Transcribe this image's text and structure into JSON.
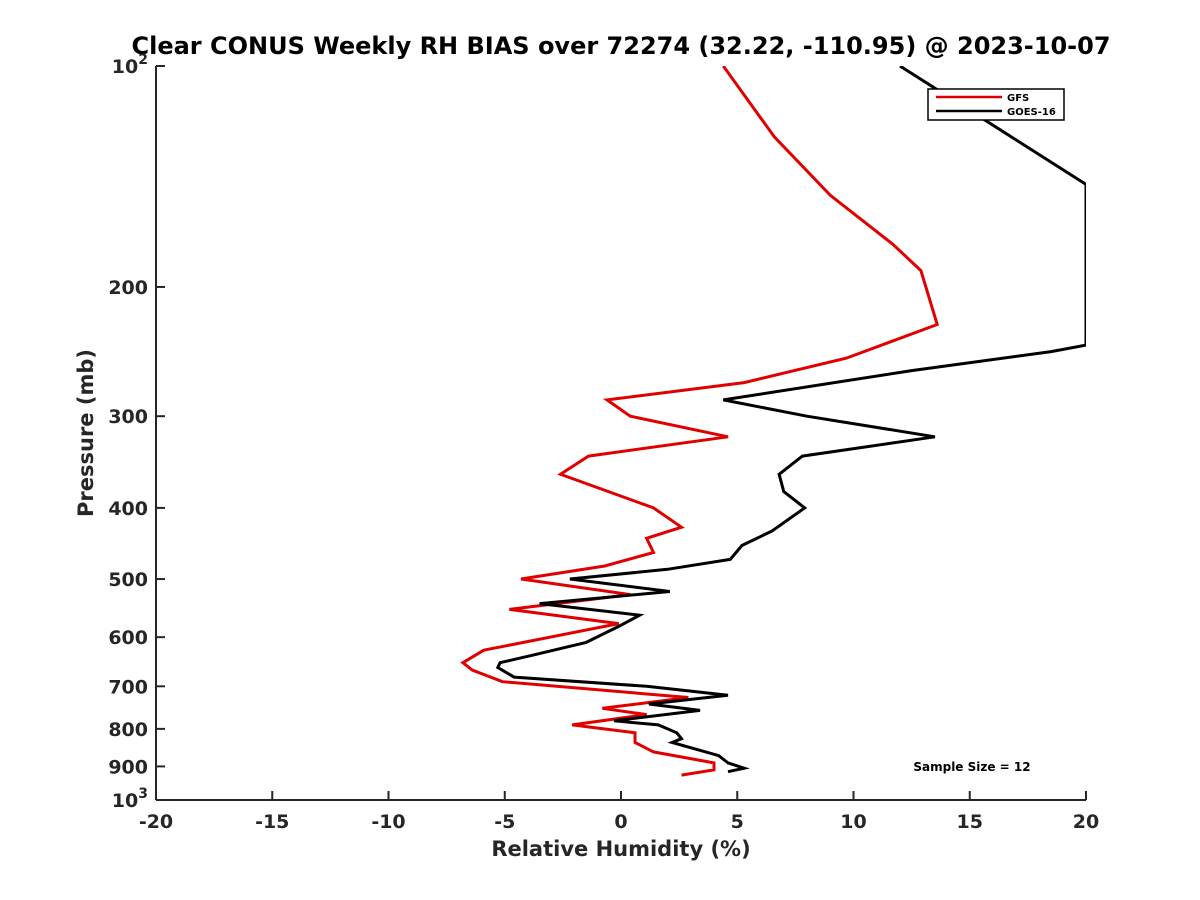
{
  "chart_data": {
    "type": "line",
    "title": "Clear CONUS Weekly RH BIAS over 72274 (32.22, -110.95) @ 2023-10-07",
    "xlabel": "Relative Humidity (%)",
    "ylabel": "Pressure (mb)",
    "xlim": [
      -20,
      20
    ],
    "ylim": [
      1000,
      100
    ],
    "y_scale": "log",
    "grid": false,
    "legend_position": "top-right",
    "x_ticks": [
      -20,
      -15,
      -10,
      -5,
      0,
      5,
      10,
      15,
      20
    ],
    "y_ticks": [
      {
        "value": 100,
        "label": "10",
        "sup": "2"
      },
      {
        "value": 200,
        "label": "200",
        "sup": ""
      },
      {
        "value": 300,
        "label": "300",
        "sup": ""
      },
      {
        "value": 400,
        "label": "400",
        "sup": ""
      },
      {
        "value": 500,
        "label": "500",
        "sup": ""
      },
      {
        "value": 600,
        "label": "600",
        "sup": ""
      },
      {
        "value": 700,
        "label": "700",
        "sup": ""
      },
      {
        "value": 800,
        "label": "800",
        "sup": ""
      },
      {
        "value": 900,
        "label": "900",
        "sup": ""
      },
      {
        "value": 1000,
        "label": "10",
        "sup": "3"
      }
    ],
    "annotation": "Sample Size = 12",
    "series": [
      {
        "name": "GFS",
        "color": "#e00000",
        "points": [
          [
            4.4,
            100
          ],
          [
            6.6,
            125
          ],
          [
            9.0,
            150
          ],
          [
            11.7,
            175
          ],
          [
            12.9,
            190
          ],
          [
            13.6,
            225
          ],
          [
            9.7,
            250
          ],
          [
            5.3,
            270
          ],
          [
            -0.6,
            285
          ],
          [
            0.4,
            300
          ],
          [
            4.6,
            320
          ],
          [
            -1.4,
            340
          ],
          [
            -2.6,
            360
          ],
          [
            1.4,
            400
          ],
          [
            2.6,
            425
          ],
          [
            1.1,
            440
          ],
          [
            1.4,
            460
          ],
          [
            -0.7,
            480
          ],
          [
            -4.3,
            500
          ],
          [
            0.4,
            525
          ],
          [
            -4.8,
            550
          ],
          [
            -0.1,
            575
          ],
          [
            -5.9,
            625
          ],
          [
            -6.8,
            650
          ],
          [
            -6.4,
            665
          ],
          [
            -5.1,
            690
          ],
          [
            2.9,
            725
          ],
          [
            -0.8,
            750
          ],
          [
            1.1,
            765
          ],
          [
            -2.1,
            790
          ],
          [
            0.6,
            810
          ],
          [
            0.6,
            835
          ],
          [
            1.4,
            860
          ],
          [
            4.0,
            890
          ],
          [
            4.0,
            910
          ],
          [
            2.6,
            925
          ]
        ]
      },
      {
        "name": "GOES-16",
        "color": "#000000",
        "points": [
          [
            12.0,
            100
          ],
          [
            20.0,
            145
          ],
          [
            20.0,
            240
          ],
          [
            18.5,
            245
          ],
          [
            12.5,
            260
          ],
          [
            4.4,
            285
          ],
          [
            8.0,
            300
          ],
          [
            13.5,
            320
          ],
          [
            7.8,
            340
          ],
          [
            6.8,
            360
          ],
          [
            7.0,
            380
          ],
          [
            7.9,
            400
          ],
          [
            6.5,
            430
          ],
          [
            5.2,
            450
          ],
          [
            4.7,
            470
          ],
          [
            2.0,
            485
          ],
          [
            -2.2,
            500
          ],
          [
            2.1,
            520
          ],
          [
            -3.5,
            540
          ],
          [
            0.8,
            560
          ],
          [
            -0.1,
            580
          ],
          [
            -1.5,
            610
          ],
          [
            -3.8,
            635
          ],
          [
            -5.2,
            650
          ],
          [
            -5.3,
            660
          ],
          [
            -4.6,
            680
          ],
          [
            1.1,
            700
          ],
          [
            4.6,
            720
          ],
          [
            1.2,
            740
          ],
          [
            3.4,
            755
          ],
          [
            -0.3,
            780
          ],
          [
            1.6,
            790
          ],
          [
            2.4,
            810
          ],
          [
            2.6,
            825
          ],
          [
            2.2,
            835
          ],
          [
            4.2,
            870
          ],
          [
            4.6,
            890
          ],
          [
            5.3,
            905
          ],
          [
            4.6,
            915
          ]
        ]
      }
    ]
  }
}
